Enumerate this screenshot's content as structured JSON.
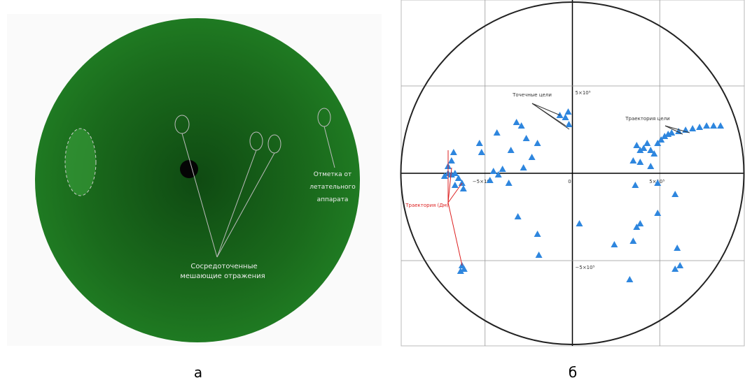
{
  "panels": {
    "a": "а",
    "b": "б"
  },
  "radar": {
    "labels": [
      "Сосредоточенные",
      "мешающие отражения",
      "Отметка от",
      "летательного",
      "аппарата"
    ]
  },
  "chart_data": {
    "type": "scatter",
    "color": "#2e86de",
    "x": [
      -712000,
      -692000,
      -672000,
      -732000,
      -652000,
      -632000,
      -672000,
      -624000,
      -692000,
      -680000,
      -712000,
      -632000,
      -620000,
      -640000,
      -532000,
      -520000,
      -452000,
      -424000,
      -472000,
      -400000,
      -432000,
      -352000,
      -320000,
      -292000,
      -264000,
      -200000,
      -232000,
      -280000,
      -364000,
      -312000,
      -200000,
      -192000,
      -72000,
      -40000,
      -20000,
      -24000,
      40000,
      368000,
      388000,
      408000,
      428000,
      448000,
      468000,
      488000,
      508000,
      528000,
      548000,
      568000,
      608000,
      648000,
      688000,
      728000,
      768000,
      808000,
      848000,
      348000,
      388000,
      448000,
      360000,
      488000,
      588000,
      368000,
      388000,
      348000,
      240000,
      600000,
      588000,
      616000,
      328000,
      488000
    ],
    "values": [
      0,
      -8000,
      0,
      -16000,
      -28000,
      -56000,
      -68000,
      -88000,
      72000,
      120000,
      40000,
      -528000,
      -548000,
      -560000,
      172000,
      120000,
      12000,
      -8000,
      -40000,
      24000,
      232000,
      132000,
      292000,
      272000,
      200000,
      172000,
      92000,
      32000,
      -56000,
      -248000,
      -348000,
      -468000,
      332000,
      320000,
      280000,
      352000,
      -288000,
      160000,
      132000,
      144000,
      172000,
      132000,
      112000,
      172000,
      192000,
      212000,
      224000,
      232000,
      240000,
      248000,
      256000,
      264000,
      272000,
      272000,
      272000,
      72000,
      64000,
      40000,
      -68000,
      -56000,
      -120000,
      -308000,
      -288000,
      -388000,
      -408000,
      -428000,
      -548000,
      -528000,
      -608000,
      -228000
    ],
    "xlim": [
      -980000,
      984000
    ],
    "ylim": [
      -988000,
      992000
    ],
    "xticks": [
      {
        "value": -500000,
        "label": "−5×10⁵"
      },
      0,
      {
        "value": 500000,
        "label": "5×10⁵"
      }
    ],
    "yticks": [
      {
        "value": -500000,
        "label": "−5×10⁵"
      },
      {
        "value": 500000,
        "label": "5×10⁵"
      }
    ],
    "grid": true,
    "annotations": [
      "Точечные цели",
      "Траектория цели",
      "Траектория (Дм)"
    ]
  }
}
